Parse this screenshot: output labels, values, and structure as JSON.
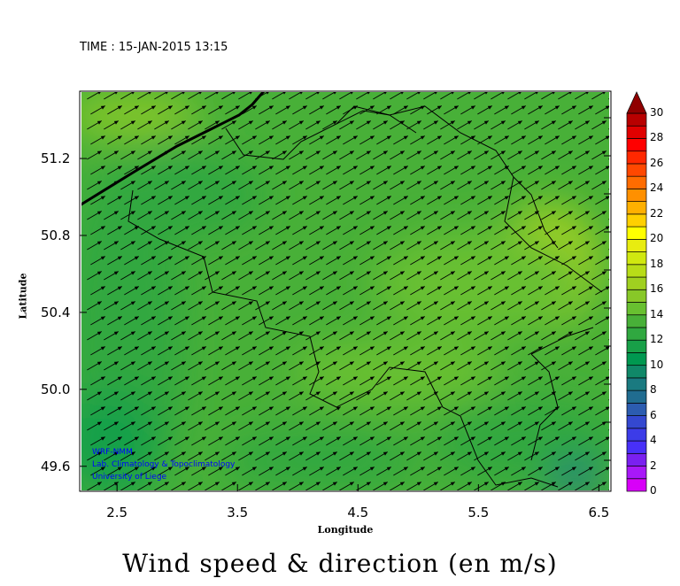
{
  "time_label": "TIME : 15-JAN-2015 13:15",
  "title": "Wind speed & direction (en m/s)",
  "xaxis": {
    "label": "Longitude",
    "ticks": [
      "2.5",
      "3.5",
      "4.5",
      "5.5",
      "6.5"
    ],
    "tick_values": [
      2.5,
      3.5,
      4.5,
      5.5,
      6.5
    ],
    "range": [
      2.19,
      6.6
    ]
  },
  "yaxis": {
    "label": "Latitude",
    "ticks": [
      "51.2",
      "50.8",
      "50.4",
      "50.0",
      "49.6"
    ],
    "tick_values": [
      51.2,
      50.8,
      50.4,
      50.0,
      49.6
    ],
    "range": [
      49.47,
      51.55
    ]
  },
  "credits": [
    "WRF-NMM",
    "Lab. Climatology & Topoclimatology",
    "University of Liege"
  ],
  "colorbar": {
    "labels": [
      "0",
      "2",
      "4",
      "6",
      "8",
      "10",
      "12",
      "14",
      "16",
      "18",
      "20",
      "22",
      "24",
      "26",
      "28",
      "30"
    ],
    "min": 0,
    "max": 30,
    "step": 1,
    "colors": [
      "#d800f8",
      "#a818f8",
      "#7a20f0",
      "#4830f8",
      "#3c3ce8",
      "#3448d0",
      "#2c5cb0",
      "#206c90",
      "#1a7a80",
      "#108868",
      "#009850",
      "#18a048",
      "#30a840",
      "#48b038",
      "#68c030",
      "#88c828",
      "#a0d020",
      "#b8dc18",
      "#d0e810",
      "#e8ec10",
      "#ffff00",
      "#ffd000",
      "#ffb000",
      "#ff9000",
      "#ff6c00",
      "#ff4800",
      "#ff2800",
      "#ff0000",
      "#e00000",
      "#b80000"
    ],
    "overflow_color": "#900000"
  },
  "wind": {
    "direction": "from south-west",
    "typical_speed_ms": 13
  }
}
